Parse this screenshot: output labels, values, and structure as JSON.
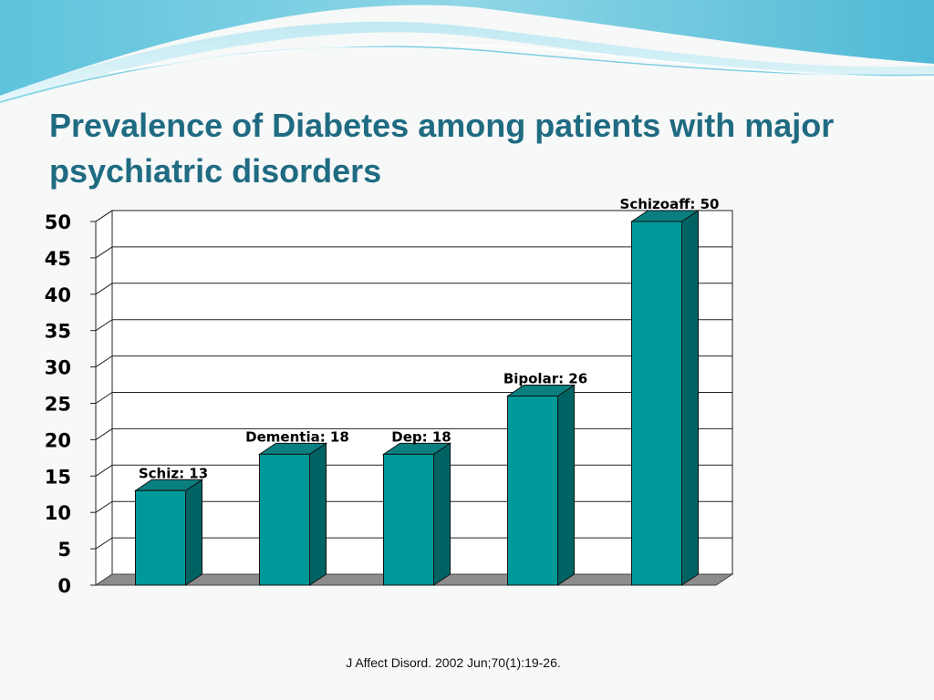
{
  "slide": {
    "title": "Prevalence of Diabetes among patients with major psychiatric disorders",
    "citation": "J Affect Disord. 2002 Jun;70(1):19-26.",
    "colors": {
      "title": "#1f6b82",
      "bar_front": "#009999",
      "bar_side": "#006363",
      "bar_top": "#0a7f7f",
      "floor": "#8c8c8c",
      "wave": "#5cc2dc"
    }
  },
  "chart_data": {
    "type": "bar",
    "categories": [
      "Schiz",
      "Dementia",
      "Dep",
      "Bipolar",
      "Schizoaff"
    ],
    "values": [
      13,
      18,
      18,
      26,
      50
    ],
    "data_labels": [
      "Schiz: 13",
      "Dementia: 18",
      "Dep: 18",
      "Bipolar: 26",
      "Schizoaff: 50"
    ],
    "ylim": [
      0,
      50
    ],
    "yticks": [
      0,
      5,
      10,
      15,
      20,
      25,
      30,
      35,
      40,
      45,
      50
    ],
    "grid": true,
    "legend": "none",
    "style": "3d-columns"
  }
}
